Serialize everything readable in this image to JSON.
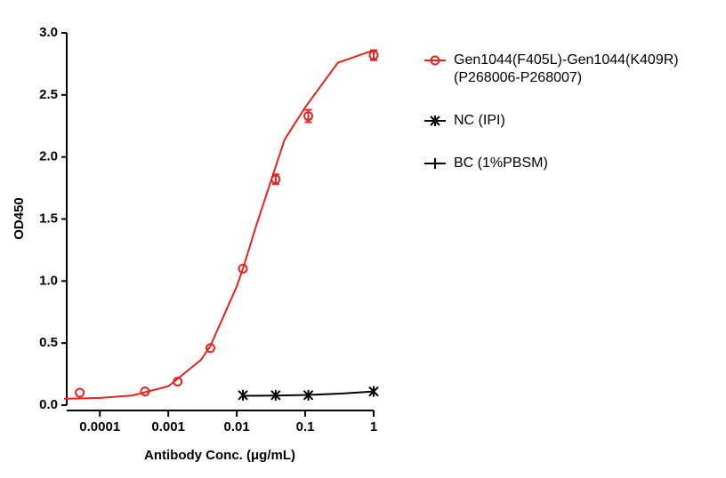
{
  "chart_data": {
    "type": "scatter",
    "xlabel": "Antibody Conc. (μg/mL)",
    "ylabel": "OD450",
    "xscale": "log",
    "xlim": [
      3e-05,
      1
    ],
    "xticks": [
      0.0001,
      0.001,
      0.01,
      0.1,
      1
    ],
    "ylim": [
      0,
      3
    ],
    "yticks": [
      {
        "value": 0,
        "label": "0.0"
      },
      0.5,
      {
        "value": 1,
        "label": "1.0"
      },
      1.5,
      {
        "value": 2,
        "label": "2.0"
      },
      2.5,
      {
        "value": 3,
        "label": "3.0"
      }
    ],
    "series": [
      {
        "name": "Gen1044(F405L)-Gen1044(K409R)\n(P268006-P268007)",
        "color": "#e8231f",
        "marker": "circle",
        "x": [
          5.08e-05,
          0.000457,
          0.00137,
          0.00412,
          0.0123,
          0.037,
          0.111,
          1
        ],
        "values": [
          0.1,
          0.11,
          0.19,
          0.46,
          1.1,
          1.82,
          2.33,
          2.82
        ],
        "errors": [
          null,
          null,
          null,
          null,
          null,
          0.04,
          0.05,
          0.04
        ],
        "fit": {
          "x": [
            3e-05,
            5e-05,
            0.0001,
            0.0003,
            0.001,
            0.003,
            0.00412,
            0.01,
            0.0123,
            0.02,
            0.05,
            0.1,
            0.3,
            1
          ],
          "y": [
            0.052,
            0.054,
            0.058,
            0.078,
            0.152,
            0.365,
            0.477,
            0.957,
            1.1,
            1.475,
            2.14,
            2.4,
            2.76,
            2.86
          ]
        }
      },
      {
        "name": "NC (IPI)",
        "color": "#000000",
        "marker": "star",
        "x": [
          0.0123,
          0.037,
          0.111,
          1
        ],
        "values": [
          0.08,
          0.08,
          0.08,
          0.11
        ],
        "fit": {
          "x": [
            0.0123,
            0.037,
            0.111,
            0.3,
            1
          ],
          "y": [
            0.075,
            0.077,
            0.082,
            0.092,
            0.11
          ]
        }
      },
      {
        "name": "BC (1%PBSM)",
        "color": "#000000",
        "marker": "plus",
        "x": [],
        "values": []
      }
    ]
  }
}
